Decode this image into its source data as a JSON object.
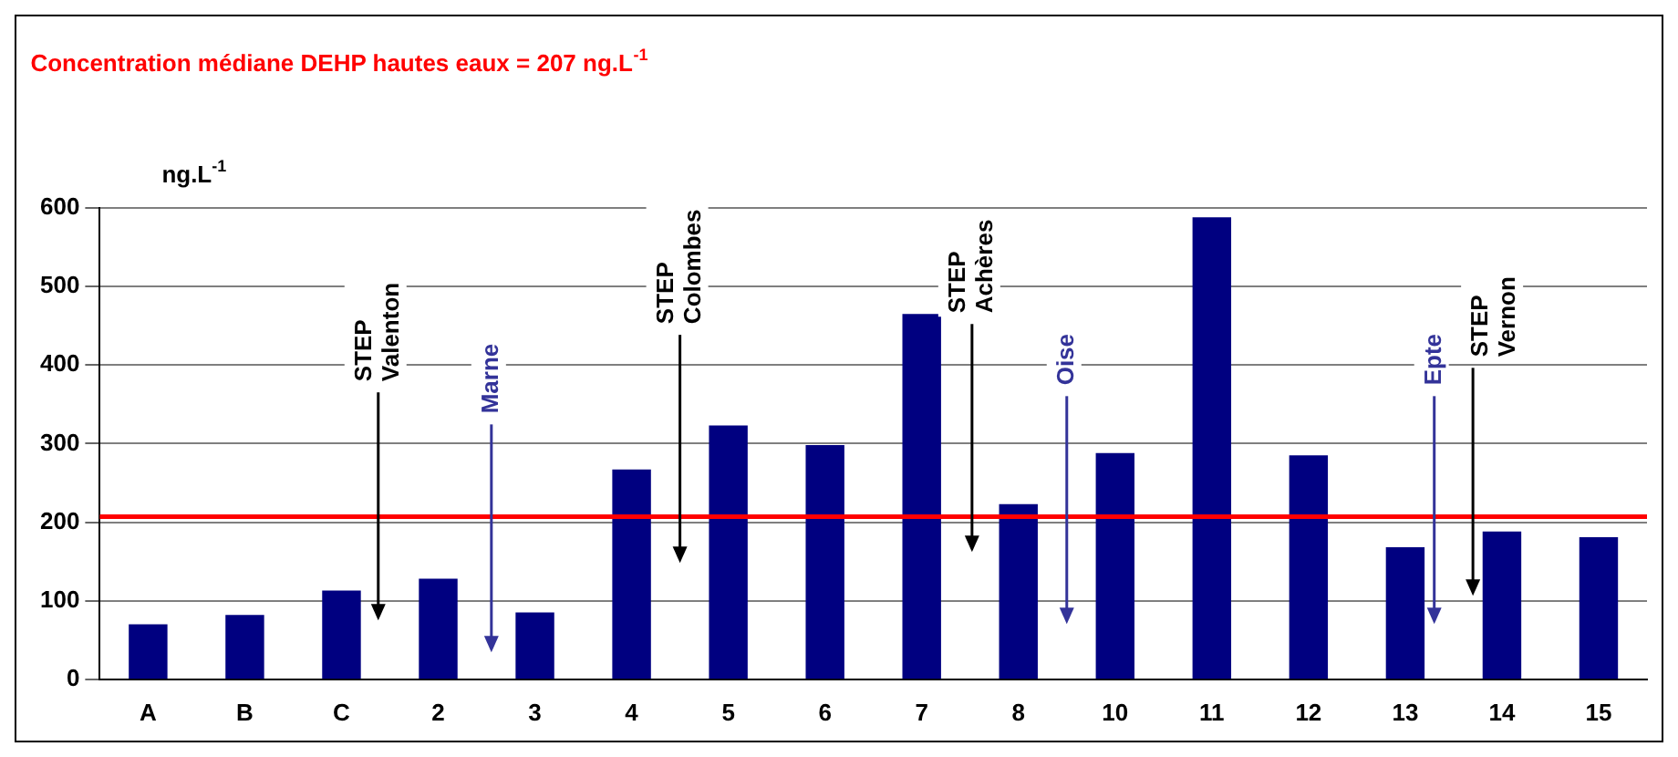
{
  "chart_data": {
    "type": "bar",
    "title": "Concentration médiane DEHP hautes eaux = 207 ng.L$^{-1}$",
    "ylabel": "ng.L$^{-1}$",
    "categories": [
      "A",
      "B",
      "C",
      "2",
      "3",
      "4",
      "5",
      "6",
      "7",
      "8",
      "10",
      "11",
      "12",
      "13",
      "14",
      "15"
    ],
    "values": [
      70,
      82,
      113,
      128,
      85,
      267,
      323,
      298,
      465,
      223,
      288,
      588,
      285,
      168,
      188,
      181
    ],
    "color": "#000080",
    "ylim": [
      0,
      600
    ],
    "yticks": [
      0,
      100,
      200,
      300,
      400,
      500,
      600
    ],
    "grid": "y",
    "legend": false,
    "ref_lines": [
      {
        "axis": "y",
        "value": 207,
        "color": "#ff0000"
      }
    ],
    "annotations": [
      "STEP Valenton",
      "Marne",
      "STEP Colombes",
      "STEP Achères",
      "Oise",
      "Epte",
      "STEP Vernon"
    ]
  }
}
